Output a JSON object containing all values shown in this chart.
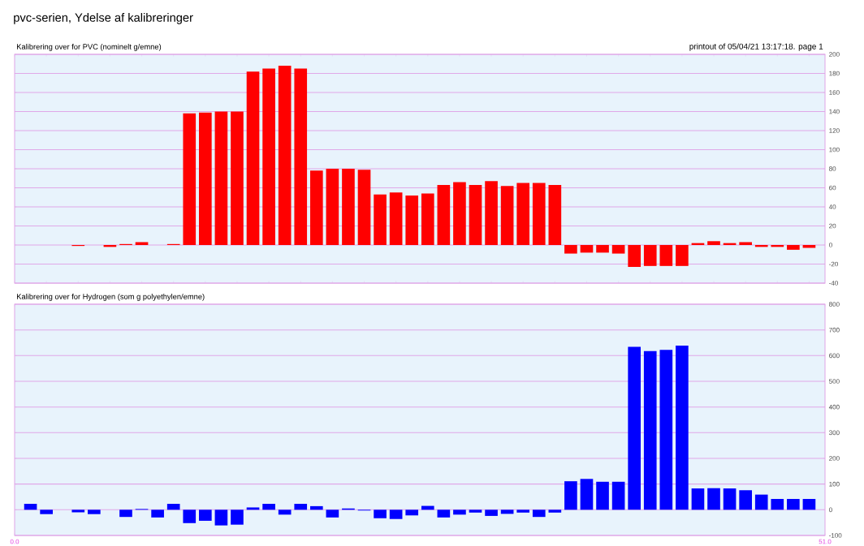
{
  "chart_data": [
    {
      "type": "bar",
      "title": "pvc-serien, Ydelse af kalibreringer",
      "subtitle": "Kalibrering over for PVC (nominelt g/emne)",
      "annotations": [
        "printout of  05/04/21 13:17:18.  page 1"
      ],
      "color": "#ff0000",
      "grid": "y",
      "tick_labels": "y",
      "x": [
        1,
        2,
        3,
        4,
        5,
        6,
        7,
        8,
        9,
        10,
        11,
        12,
        13,
        14,
        15,
        16,
        17,
        18,
        19,
        20,
        21,
        22,
        23,
        24,
        25,
        26,
        27,
        28,
        29,
        30,
        31,
        32,
        33,
        34,
        35,
        36,
        37,
        38,
        39,
        40,
        41,
        42,
        43,
        44,
        45,
        46,
        47,
        48,
        49,
        50
      ],
      "values": [
        0,
        0,
        0,
        -1,
        0,
        -2,
        1,
        3,
        0,
        1,
        138,
        139,
        140,
        140,
        182,
        185,
        188,
        185,
        78,
        80,
        80,
        79,
        53,
        55,
        52,
        54,
        63,
        66,
        63,
        67,
        62,
        65,
        65,
        63,
        -9,
        -8,
        -8,
        -9,
        -23,
        -22,
        -22,
        -22,
        2,
        4,
        2,
        3,
        -2,
        -2,
        -5,
        -3
      ],
      "xlim": [
        0,
        51
      ],
      "ylim": [
        -40,
        200
      ],
      "yticks": [
        -40,
        -20,
        0,
        20,
        40,
        60,
        80,
        100,
        120,
        140,
        160,
        180,
        200
      ]
    },
    {
      "type": "bar",
      "subtitle": "Kalibrering over for Hydrogen (som g polyethylen/emne)",
      "color": "#0000ff",
      "grid": "y",
      "x": [
        1,
        2,
        3,
        4,
        5,
        6,
        7,
        8,
        9,
        10,
        11,
        12,
        13,
        14,
        15,
        16,
        17,
        18,
        19,
        20,
        21,
        22,
        23,
        24,
        25,
        26,
        27,
        28,
        29,
        30,
        31,
        32,
        33,
        34,
        35,
        36,
        37,
        38,
        39,
        40,
        41,
        42,
        43,
        44,
        45,
        46,
        47,
        48,
        49,
        50
      ],
      "values": [
        23,
        -17,
        0,
        -10,
        -17,
        0,
        -28,
        3,
        -30,
        23,
        -52,
        -43,
        -61,
        -58,
        9,
        23,
        -19,
        23,
        14,
        -30,
        5,
        -3,
        -33,
        -36,
        -22,
        15,
        -30,
        -19,
        -11,
        -24,
        -16,
        -11,
        -28,
        -11,
        111,
        120,
        109,
        109,
        634,
        618,
        622,
        639,
        83,
        84,
        83,
        76,
        59,
        42,
        42,
        42
      ],
      "xlim": [
        0,
        51
      ],
      "xticks": [
        {
          "value": 0,
          "label": "0.0"
        },
        {
          "value": 51,
          "label": "51.0"
        }
      ],
      "ylim": [
        -100,
        800
      ],
      "yticks": [
        -100,
        0,
        100,
        200,
        300,
        400,
        500,
        600,
        700,
        800
      ]
    }
  ]
}
